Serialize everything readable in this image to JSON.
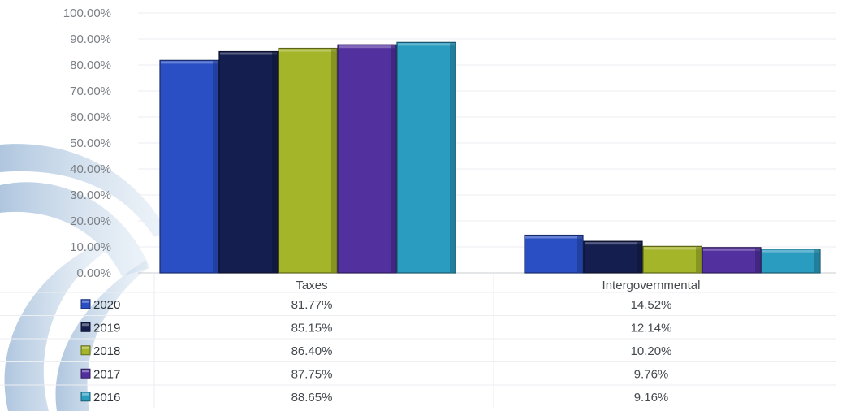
{
  "chart_data": {
    "type": "bar",
    "categories": [
      "Taxes",
      "Intergovernmental"
    ],
    "ylim": [
      0,
      100
    ],
    "ytick_step": 10,
    "ytick_labels": [
      "0.00%",
      "10.00%",
      "20.00%",
      "30.00%",
      "40.00%",
      "50.00%",
      "60.00%",
      "70.00%",
      "80.00%",
      "90.00%",
      "100.00%"
    ],
    "grid": true,
    "legend": "data-table-left",
    "series": [
      {
        "name": "2020",
        "color": "#2a4fc4",
        "values": [
          81.77,
          14.52
        ],
        "labels": [
          "81.77%",
          "14.52%"
        ]
      },
      {
        "name": "2019",
        "color": "#151f4f",
        "values": [
          85.15,
          12.14
        ],
        "labels": [
          "85.15%",
          "12.14%"
        ]
      },
      {
        "name": "2018",
        "color": "#a5b52a",
        "values": [
          86.4,
          10.2
        ],
        "labels": [
          "86.40%",
          "10.20%"
        ]
      },
      {
        "name": "2017",
        "color": "#52309e",
        "values": [
          87.75,
          9.76
        ],
        "labels": [
          "87.75%",
          "9.76%"
        ]
      },
      {
        "name": "2016",
        "color": "#2a9cc0",
        "values": [
          88.65,
          9.16
        ],
        "labels": [
          "88.65%",
          "9.16%"
        ]
      }
    ]
  }
}
